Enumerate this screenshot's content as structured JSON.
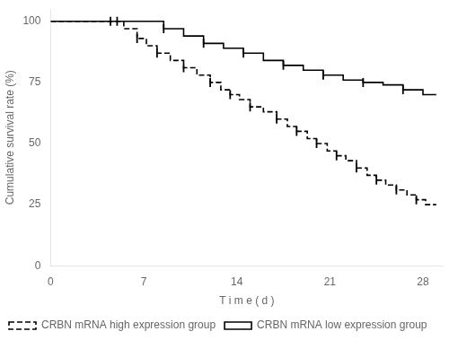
{
  "chart_data": {
    "type": "step",
    "xlabel": "T i m e ( d )",
    "ylabel": "Cumulative survival rate (%)",
    "xlim": [
      0,
      29.5
    ],
    "ylim": [
      0,
      105
    ],
    "xticks": [
      0,
      7,
      14,
      21,
      28
    ],
    "yticks": [
      0,
      25,
      50,
      75,
      100
    ],
    "grid": false,
    "legend": "lower left",
    "series": [
      {
        "name": "CRBN mRNA high expression group",
        "color": "#000000",
        "line_style": "dashed",
        "marker": "|",
        "x": [
          0,
          4.5,
          5.5,
          6.5,
          7.2,
          8.0,
          9.0,
          10.0,
          11.0,
          12.0,
          12.8,
          13.5,
          14.2,
          15.0,
          16.0,
          17.0,
          17.8,
          18.5,
          19.3,
          20.0,
          20.8,
          21.5,
          22.2,
          23.0,
          23.8,
          24.5,
          25.2,
          26.0,
          26.8,
          27.5,
          28.2,
          29.0
        ],
        "values": [
          100,
          100,
          97,
          93,
          90,
          87,
          84,
          81,
          78,
          75,
          72,
          70,
          68,
          65,
          63,
          60,
          57,
          55,
          52,
          50,
          47,
          45,
          43,
          40,
          37,
          35,
          33,
          31,
          29,
          27,
          25,
          25
        ],
        "censor_x": [
          4.5,
          6.5,
          8.0,
          10.0,
          12.0,
          13.5,
          15.0,
          17.0,
          18.5,
          20.0,
          21.5,
          23.0,
          24.5,
          26.0,
          27.5
        ],
        "censor_values": [
          100,
          93,
          87,
          81,
          75,
          70,
          65,
          60,
          55,
          50,
          45,
          40,
          35,
          31,
          27
        ]
      },
      {
        "name": "CRBN mRNA low expression group",
        "color": "#000000",
        "line_style": "solid",
        "marker": "|",
        "x": [
          0,
          5.0,
          7.0,
          8.5,
          10.0,
          11.5,
          13.0,
          14.5,
          16.0,
          17.5,
          19.0,
          20.5,
          22.0,
          23.5,
          25.0,
          26.5,
          28.0,
          29.0
        ],
        "values": [
          100,
          100,
          100,
          97,
          94,
          91,
          89,
          87,
          84,
          82,
          80,
          78,
          76,
          75,
          74,
          72,
          70,
          70
        ],
        "censor_x": [
          5.0,
          8.5,
          11.5,
          14.5,
          17.5,
          20.5,
          23.5,
          26.5
        ],
        "censor_values": [
          100,
          97,
          91,
          87,
          82,
          78,
          75,
          72
        ]
      }
    ]
  }
}
